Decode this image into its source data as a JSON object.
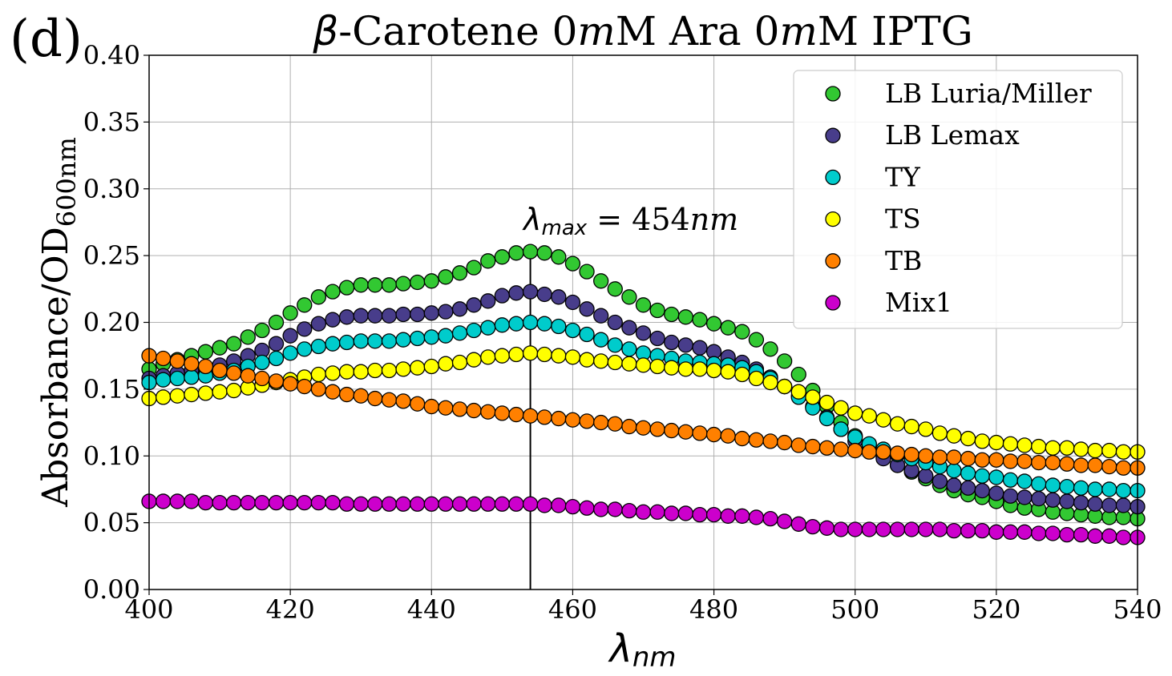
{
  "panel_label": "(d)",
  "chart_data": {
    "type": "scatter",
    "title": {
      "prefix": "β",
      "rest": "-Carotene 0",
      "m1": "m",
      "mid": "M Ara 0",
      "m2": "m",
      "end": "M IPTG"
    },
    "xlabel": {
      "base": "λ",
      "sub": "nm"
    },
    "ylabel": {
      "base": "Absorbance/OD",
      "sub": "600nm"
    },
    "xlim": [
      400,
      540
    ],
    "ylim": [
      0.0,
      0.4
    ],
    "xticks": [
      "400",
      "420",
      "440",
      "460",
      "480",
      "500",
      "520",
      "540"
    ],
    "yticks": [
      "0.00",
      "0.05",
      "0.10",
      "0.15",
      "0.20",
      "0.25",
      "0.30",
      "0.35",
      "0.40"
    ],
    "grid": true,
    "legend_position": "top-right",
    "annotation": {
      "lhs_base": "λ",
      "lhs_sub": "max",
      "rhs": " = 454",
      "unit": "nm",
      "x": 454
    },
    "x": [
      400,
      402,
      404,
      406,
      408,
      410,
      412,
      414,
      416,
      418,
      420,
      422,
      424,
      426,
      428,
      430,
      432,
      434,
      436,
      438,
      440,
      442,
      444,
      446,
      448,
      450,
      452,
      454,
      456,
      458,
      460,
      462,
      464,
      466,
      468,
      470,
      472,
      474,
      476,
      478,
      480,
      482,
      484,
      486,
      488,
      490,
      492,
      494,
      496,
      498,
      500,
      502,
      504,
      506,
      508,
      510,
      512,
      514,
      516,
      518,
      520,
      522,
      524,
      526,
      528,
      530,
      532,
      534,
      536,
      538,
      540
    ],
    "series": [
      {
        "name": "LB Luria/Miller",
        "color": "#32c832",
        "values": [
          0.165,
          0.169,
          0.172,
          0.175,
          0.178,
          0.181,
          0.184,
          0.189,
          0.194,
          0.2,
          0.207,
          0.213,
          0.219,
          0.223,
          0.226,
          0.228,
          0.228,
          0.228,
          0.229,
          0.23,
          0.231,
          0.234,
          0.237,
          0.241,
          0.246,
          0.249,
          0.252,
          0.253,
          0.252,
          0.249,
          0.244,
          0.238,
          0.231,
          0.225,
          0.219,
          0.213,
          0.209,
          0.206,
          0.204,
          0.202,
          0.199,
          0.196,
          0.193,
          0.187,
          0.18,
          0.171,
          0.161,
          0.149,
          0.137,
          0.125,
          0.115,
          0.106,
          0.099,
          0.093,
          0.088,
          0.083,
          0.078,
          0.074,
          0.071,
          0.069,
          0.066,
          0.063,
          0.061,
          0.06,
          0.058,
          0.057,
          0.056,
          0.055,
          0.054,
          0.054,
          0.053
        ]
      },
      {
        "name": "LB Lemax",
        "color": "#483d8b",
        "values": [
          0.158,
          0.16,
          0.162,
          0.164,
          0.166,
          0.168,
          0.171,
          0.175,
          0.179,
          0.184,
          0.19,
          0.195,
          0.199,
          0.202,
          0.204,
          0.205,
          0.205,
          0.205,
          0.206,
          0.206,
          0.207,
          0.208,
          0.21,
          0.213,
          0.216,
          0.22,
          0.222,
          0.223,
          0.221,
          0.219,
          0.215,
          0.21,
          0.205,
          0.2,
          0.196,
          0.192,
          0.188,
          0.185,
          0.183,
          0.181,
          0.178,
          0.174,
          0.17,
          0.165,
          0.159,
          0.152,
          0.145,
          0.137,
          0.129,
          0.12,
          0.111,
          0.104,
          0.098,
          0.093,
          0.089,
          0.085,
          0.081,
          0.078,
          0.076,
          0.074,
          0.072,
          0.07,
          0.069,
          0.068,
          0.067,
          0.066,
          0.065,
          0.064,
          0.063,
          0.063,
          0.062
        ]
      },
      {
        "name": "TY",
        "color": "#00cccc",
        "values": [
          0.155,
          0.157,
          0.158,
          0.159,
          0.16,
          0.162,
          0.164,
          0.167,
          0.17,
          0.173,
          0.177,
          0.18,
          0.182,
          0.184,
          0.185,
          0.186,
          0.186,
          0.186,
          0.187,
          0.188,
          0.189,
          0.19,
          0.192,
          0.194,
          0.196,
          0.198,
          0.199,
          0.2,
          0.199,
          0.197,
          0.194,
          0.191,
          0.187,
          0.183,
          0.18,
          0.177,
          0.175,
          0.173,
          0.171,
          0.17,
          0.169,
          0.168,
          0.166,
          0.163,
          0.158,
          0.152,
          0.144,
          0.136,
          0.128,
          0.12,
          0.114,
          0.109,
          0.105,
          0.101,
          0.098,
          0.095,
          0.092,
          0.089,
          0.087,
          0.085,
          0.084,
          0.082,
          0.081,
          0.079,
          0.078,
          0.077,
          0.076,
          0.075,
          0.075,
          0.074,
          0.074
        ]
      },
      {
        "name": "TS",
        "color": "#ffff00",
        "values": [
          0.143,
          0.144,
          0.145,
          0.146,
          0.147,
          0.148,
          0.149,
          0.151,
          0.153,
          0.155,
          0.157,
          0.159,
          0.161,
          0.162,
          0.163,
          0.163,
          0.164,
          0.164,
          0.165,
          0.166,
          0.167,
          0.169,
          0.17,
          0.172,
          0.174,
          0.175,
          0.176,
          0.177,
          0.176,
          0.175,
          0.174,
          0.172,
          0.171,
          0.17,
          0.169,
          0.168,
          0.167,
          0.166,
          0.165,
          0.165,
          0.164,
          0.163,
          0.161,
          0.158,
          0.155,
          0.152,
          0.148,
          0.144,
          0.14,
          0.136,
          0.132,
          0.13,
          0.127,
          0.124,
          0.122,
          0.12,
          0.117,
          0.115,
          0.113,
          0.111,
          0.11,
          0.109,
          0.108,
          0.107,
          0.106,
          0.106,
          0.105,
          0.104,
          0.104,
          0.103,
          0.103
        ]
      },
      {
        "name": "TB",
        "color": "#ff8000",
        "values": [
          0.175,
          0.173,
          0.171,
          0.169,
          0.167,
          0.164,
          0.162,
          0.16,
          0.158,
          0.156,
          0.154,
          0.152,
          0.15,
          0.148,
          0.146,
          0.145,
          0.143,
          0.142,
          0.141,
          0.139,
          0.137,
          0.136,
          0.135,
          0.134,
          0.133,
          0.132,
          0.131,
          0.13,
          0.129,
          0.128,
          0.127,
          0.126,
          0.125,
          0.124,
          0.122,
          0.121,
          0.12,
          0.119,
          0.118,
          0.117,
          0.116,
          0.115,
          0.113,
          0.112,
          0.111,
          0.11,
          0.108,
          0.107,
          0.106,
          0.105,
          0.104,
          0.103,
          0.103,
          0.102,
          0.101,
          0.1,
          0.099,
          0.099,
          0.098,
          0.097,
          0.097,
          0.096,
          0.096,
          0.095,
          0.095,
          0.094,
          0.093,
          0.093,
          0.092,
          0.091,
          0.091
        ]
      },
      {
        "name": "Mix1",
        "color": "#cc00cc",
        "values": [
          0.066,
          0.066,
          0.066,
          0.066,
          0.065,
          0.065,
          0.065,
          0.065,
          0.065,
          0.065,
          0.065,
          0.065,
          0.065,
          0.065,
          0.064,
          0.064,
          0.064,
          0.064,
          0.064,
          0.064,
          0.064,
          0.064,
          0.064,
          0.064,
          0.064,
          0.064,
          0.064,
          0.064,
          0.063,
          0.063,
          0.062,
          0.061,
          0.06,
          0.06,
          0.059,
          0.058,
          0.058,
          0.057,
          0.057,
          0.056,
          0.056,
          0.055,
          0.055,
          0.054,
          0.053,
          0.051,
          0.049,
          0.047,
          0.046,
          0.045,
          0.045,
          0.045,
          0.045,
          0.045,
          0.045,
          0.045,
          0.045,
          0.044,
          0.044,
          0.044,
          0.043,
          0.043,
          0.043,
          0.042,
          0.042,
          0.041,
          0.041,
          0.04,
          0.04,
          0.039,
          0.039
        ]
      }
    ]
  }
}
